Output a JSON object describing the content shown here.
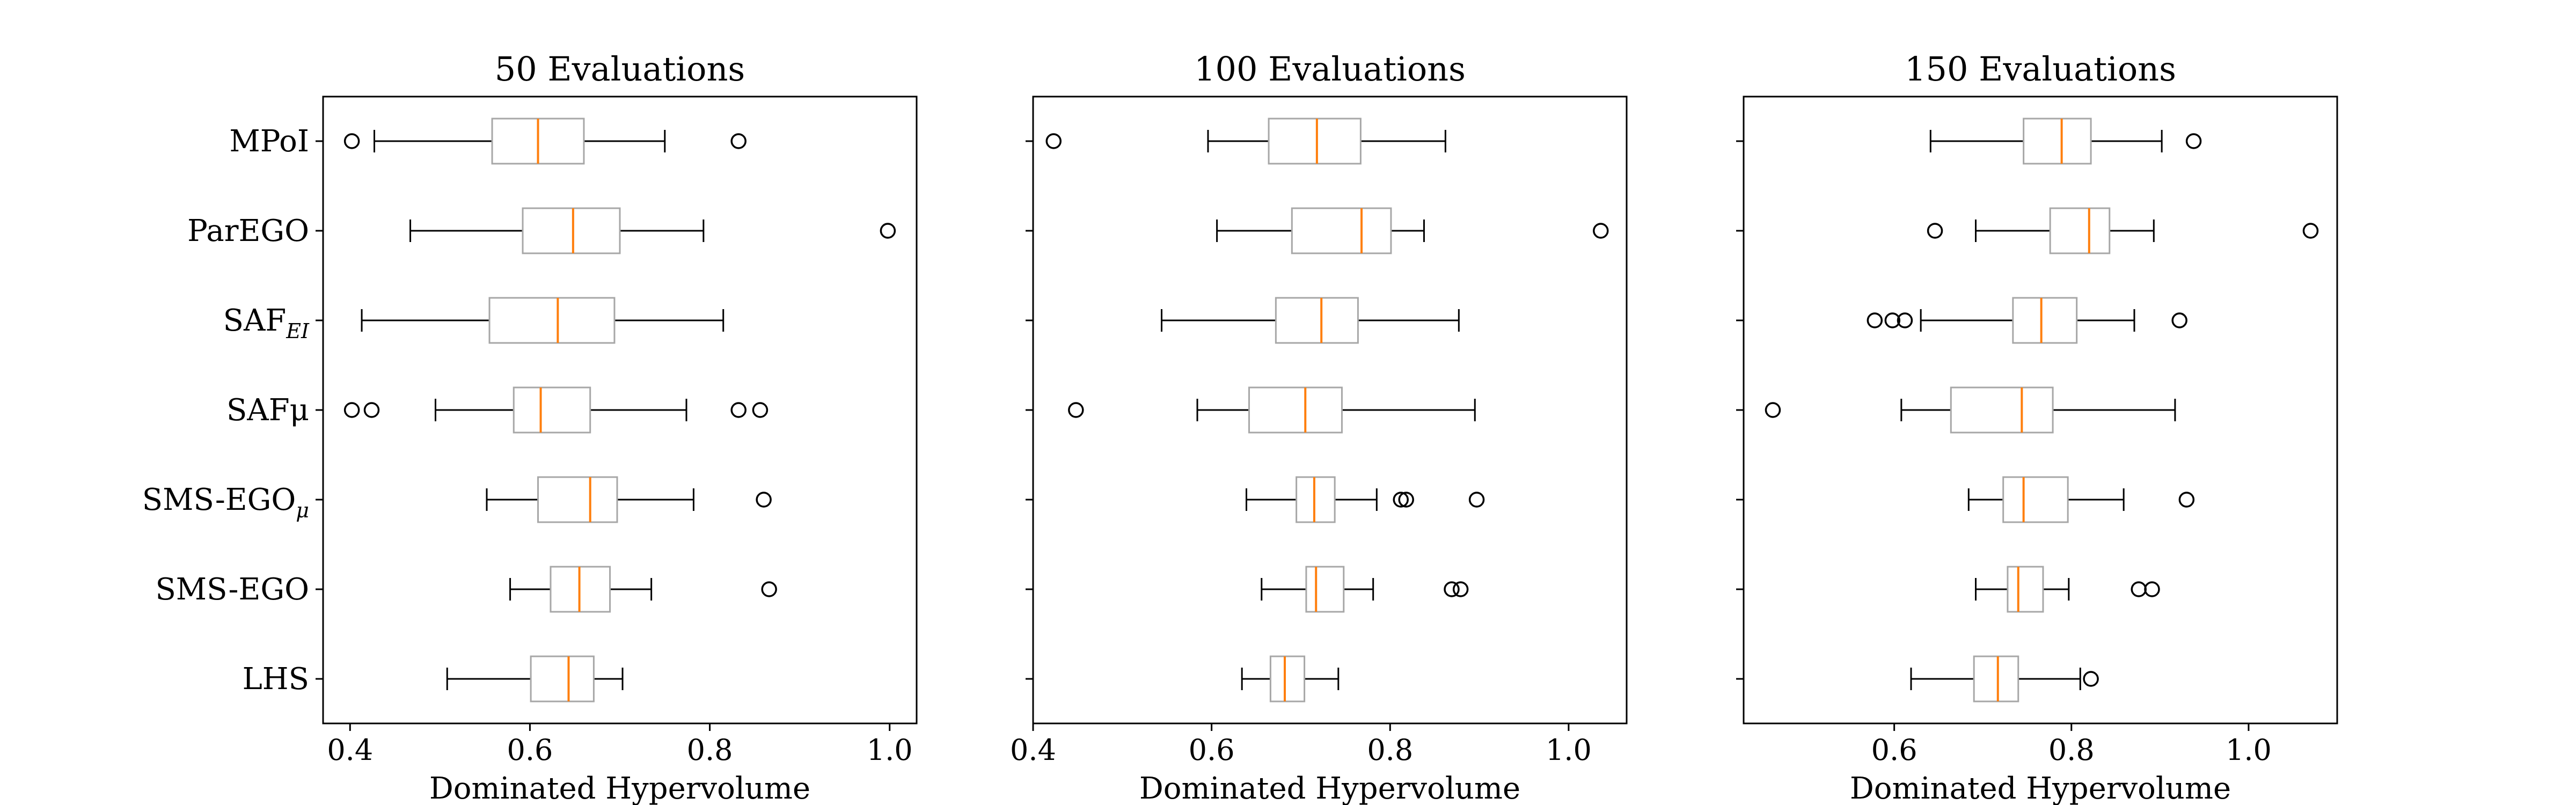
{
  "chart_data": [
    {
      "type": "boxplot",
      "title": "50 Evaluations",
      "xlabel": "Dominated Hypervolume",
      "ylabel": "",
      "xlim": [
        0.37,
        1.03
      ],
      "xticks": [
        0.4,
        0.6,
        0.8,
        1.0
      ],
      "xtick_labels": [
        "0.4",
        "0.6",
        "0.8",
        "1.0"
      ],
      "show_yticklabels": true,
      "grid": false,
      "categories": [
        {
          "label": "MPoI",
          "sub": ""
        },
        {
          "label": "ParEGO",
          "sub": ""
        },
        {
          "label": "SAF",
          "sub": "EI"
        },
        {
          "label": "SAFμ",
          "sub": ""
        },
        {
          "label": "SMS-EGO",
          "sub": "μ"
        },
        {
          "label": "SMS-EGO",
          "sub": ""
        },
        {
          "label": "LHS",
          "sub": ""
        }
      ],
      "boxes": [
        {
          "whislo": 0.427,
          "q1": 0.558,
          "med": 0.609,
          "q3": 0.66,
          "whishi": 0.75,
          "fliers": [
            0.402,
            0.832
          ]
        },
        {
          "whislo": 0.467,
          "q1": 0.592,
          "med": 0.648,
          "q3": 0.7,
          "whishi": 0.793,
          "fliers": [
            0.998
          ]
        },
        {
          "whislo": 0.413,
          "q1": 0.555,
          "med": 0.631,
          "q3": 0.694,
          "whishi": 0.815,
          "fliers": []
        },
        {
          "whislo": 0.495,
          "q1": 0.582,
          "med": 0.612,
          "q3": 0.667,
          "whishi": 0.774,
          "fliers": [
            0.402,
            0.424,
            0.832,
            0.856
          ]
        },
        {
          "whislo": 0.552,
          "q1": 0.609,
          "med": 0.667,
          "q3": 0.697,
          "whishi": 0.782,
          "fliers": [
            0.86
          ]
        },
        {
          "whislo": 0.578,
          "q1": 0.623,
          "med": 0.655,
          "q3": 0.689,
          "whishi": 0.735,
          "fliers": [
            0.866
          ]
        },
        {
          "whislo": 0.508,
          "q1": 0.601,
          "med": 0.643,
          "q3": 0.671,
          "whishi": 0.703,
          "fliers": []
        }
      ]
    },
    {
      "type": "boxplot",
      "title": "100 Evaluations",
      "xlabel": "Dominated Hypervolume",
      "ylabel": "",
      "xlim": [
        0.4,
        1.065
      ],
      "xticks": [
        0.4,
        0.6,
        0.8,
        1.0
      ],
      "xtick_labels": [
        "0.4",
        "0.6",
        "0.8",
        "1.0"
      ],
      "show_yticklabels": false,
      "grid": false,
      "boxes": [
        {
          "whislo": 0.596,
          "q1": 0.664,
          "med": 0.718,
          "q3": 0.767,
          "whishi": 0.862,
          "fliers": [
            0.423
          ]
        },
        {
          "whislo": 0.606,
          "q1": 0.69,
          "med": 0.768,
          "q3": 0.801,
          "whishi": 0.838,
          "fliers": [
            1.036
          ]
        },
        {
          "whislo": 0.544,
          "q1": 0.672,
          "med": 0.723,
          "q3": 0.764,
          "whishi": 0.877,
          "fliers": []
        },
        {
          "whislo": 0.584,
          "q1": 0.642,
          "med": 0.705,
          "q3": 0.746,
          "whishi": 0.895,
          "fliers": [
            0.448
          ]
        },
        {
          "whislo": 0.639,
          "q1": 0.695,
          "med": 0.715,
          "q3": 0.738,
          "whishi": 0.785,
          "fliers": [
            0.812,
            0.818,
            0.897
          ]
        },
        {
          "whislo": 0.656,
          "q1": 0.706,
          "med": 0.717,
          "q3": 0.748,
          "whishi": 0.781,
          "fliers": [
            0.869,
            0.879
          ]
        },
        {
          "whislo": 0.634,
          "q1": 0.666,
          "med": 0.682,
          "q3": 0.704,
          "whishi": 0.742,
          "fliers": []
        }
      ]
    },
    {
      "type": "boxplot",
      "title": "150 Evaluations",
      "xlabel": "Dominated Hypervolume",
      "ylabel": "",
      "xlim": [
        0.43,
        1.1
      ],
      "xticks": [
        0.6,
        0.8,
        1.0
      ],
      "xtick_labels": [
        "0.6",
        "0.8",
        "1.0"
      ],
      "show_yticklabels": false,
      "grid": false,
      "boxes": [
        {
          "whislo": 0.641,
          "q1": 0.746,
          "med": 0.789,
          "q3": 0.822,
          "whishi": 0.902,
          "fliers": [
            0.938
          ]
        },
        {
          "whislo": 0.692,
          "q1": 0.776,
          "med": 0.82,
          "q3": 0.843,
          "whishi": 0.893,
          "fliers": [
            0.646,
            1.07
          ]
        },
        {
          "whislo": 0.63,
          "q1": 0.734,
          "med": 0.766,
          "q3": 0.806,
          "whishi": 0.871,
          "fliers": [
            0.578,
            0.598,
            0.612,
            0.922
          ]
        },
        {
          "whislo": 0.608,
          "q1": 0.664,
          "med": 0.744,
          "q3": 0.779,
          "whishi": 0.917,
          "fliers": [
            0.463
          ]
        },
        {
          "whislo": 0.684,
          "q1": 0.723,
          "med": 0.746,
          "q3": 0.796,
          "whishi": 0.859,
          "fliers": [
            0.93
          ]
        },
        {
          "whislo": 0.692,
          "q1": 0.728,
          "med": 0.74,
          "q3": 0.768,
          "whishi": 0.797,
          "fliers": [
            0.876,
            0.891
          ]
        },
        {
          "whislo": 0.619,
          "q1": 0.69,
          "med": 0.717,
          "q3": 0.74,
          "whishi": 0.81,
          "fliers": [
            0.822
          ]
        }
      ]
    }
  ]
}
